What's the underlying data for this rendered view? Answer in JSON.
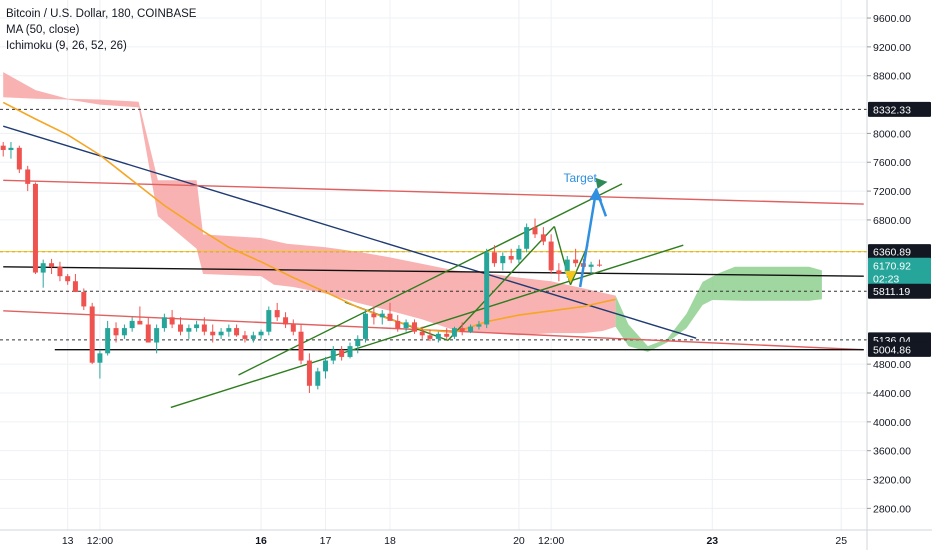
{
  "legend": {
    "title": "Bitcoin / U.S. Dollar, 180, COINBASE",
    "ma": "MA (50, close)",
    "ichimoku": "Ichimoku (9, 26, 52, 26)"
  },
  "colors": {
    "up": "#26a69a",
    "down": "#ef5350",
    "cloud_red": "#f8a5a5",
    "cloud_green": "#8fcf8f",
    "ma": "#f5a623",
    "trend_blue": "#1f3b73",
    "trend_green": "#2e7d1f",
    "red_line": "#e06060",
    "yellow_line": "#f5c518",
    "target_arrow": "#2f8fe0"
  },
  "chart_data": {
    "type": "candlestick",
    "title": "Bitcoin / U.S. Dollar, 180, COINBASE",
    "ylim": [
      2500,
      9850
    ],
    "y_ticks": [
      9600,
      9200,
      8800,
      8000,
      7600,
      7200,
      6800,
      4800,
      4400,
      4000,
      3600,
      3200,
      2800
    ],
    "y_tick_labels": [
      "9600.00",
      "9200.00",
      "8800.00",
      "8000.00",
      "7600.00",
      "7200.00",
      "6800.00",
      "4800.00",
      "4400.00",
      "4000.00",
      "3600.00",
      "3200.00",
      "2800.00"
    ],
    "x_ticks": [
      {
        "label": "13",
        "bold": false,
        "t": 13.0
      },
      {
        "label": "12:00",
        "bold": false,
        "t": 13.5
      },
      {
        "label": "16",
        "bold": true,
        "t": 16.0
      },
      {
        "label": "17",
        "bold": false,
        "t": 17.0
      },
      {
        "label": "18",
        "bold": false,
        "t": 18.0
      },
      {
        "label": "20",
        "bold": false,
        "t": 20.0
      },
      {
        "label": "12:00",
        "bold": false,
        "t": 20.5
      },
      {
        "label": "23",
        "bold": true,
        "t": 23.0
      },
      {
        "label": "25",
        "bold": false,
        "t": 25.0
      }
    ],
    "price_tags": [
      {
        "label": "8332.33",
        "value": 8332.33,
        "bg": "#131722"
      },
      {
        "label": "6360.89",
        "value": 6360.89,
        "bg": "#131722"
      },
      {
        "label": "6170.92",
        "value": 6170.92,
        "bg": "#26a69a"
      },
      {
        "label": "02:23",
        "value": 5990,
        "bg": "#26a69a"
      },
      {
        "label": "5811.19",
        "value": 5811.19,
        "bg": "#131722"
      },
      {
        "label": "5136.04",
        "value": 5136.04,
        "bg": "#131722"
      },
      {
        "label": "5004.86",
        "value": 5004.86,
        "bg": "#131722"
      }
    ],
    "horizontal_levels": [
      {
        "value": 8332.33,
        "style": "dashed",
        "color": "#333333"
      },
      {
        "value": 6360.89,
        "style": "dashed",
        "color": "#333333"
      },
      {
        "value": 6360.89,
        "style": "solid",
        "color": "#f5c518"
      },
      {
        "value": 5811.19,
        "style": "dashed",
        "color": "#333333"
      },
      {
        "value": 5136.04,
        "style": "dashed",
        "color": "#333333"
      }
    ],
    "trend_lines": [
      {
        "from": [
          12.0,
          8100
        ],
        "to": [
          22.75,
          5160
        ],
        "color": "#1f3b73"
      },
      {
        "from": [
          12.0,
          7350
        ],
        "to": [
          25.35,
          7020
        ],
        "color": "#e06060"
      },
      {
        "from": [
          12.0,
          5540
        ],
        "to": [
          25.35,
          5000
        ],
        "color": "#e06060"
      },
      {
        "from": [
          12.0,
          6150
        ],
        "to": [
          25.35,
          6020
        ],
        "color": "#111111"
      },
      {
        "from": [
          12.8,
          5000
        ],
        "to": [
          25.35,
          5000
        ],
        "color": "#111111"
      },
      {
        "from": [
          15.65,
          4650
        ],
        "to": [
          21.6,
          7300
        ],
        "color": "#2e7d1f"
      },
      {
        "from": [
          14.6,
          4200
        ],
        "to": [
          22.55,
          6450
        ],
        "color": "#2e7d1f"
      },
      {
        "from": [
          17.3,
          5660
        ],
        "to": [
          18.9,
          5130
        ],
        "color": "#2e7d1f"
      },
      {
        "from": [
          18.9,
          5130
        ],
        "to": [
          20.55,
          6710
        ],
        "color": "#2e7d1f"
      },
      {
        "from": [
          20.55,
          6710
        ],
        "to": [
          20.8,
          5900
        ],
        "color": "#2e7d1f"
      },
      {
        "from": [
          20.8,
          5900
        ],
        "to": [
          21.07,
          6450
        ],
        "color": "#2e7d1f"
      }
    ],
    "target_arrow": {
      "from": [
        20.95,
        5870
      ],
      "to": [
        21.2,
        7220
      ],
      "tail": [
        21.35,
        6850
      ]
    },
    "target_label": "Target",
    "ma_line": [
      [
        12.0,
        8430
      ],
      [
        12.5,
        8200
      ],
      [
        13.0,
        7980
      ],
      [
        13.5,
        7700
      ],
      [
        14.0,
        7350
      ],
      [
        14.5,
        7000
      ],
      [
        15.0,
        6700
      ],
      [
        15.5,
        6420
      ],
      [
        16.0,
        6220
      ],
      [
        16.5,
        6000
      ],
      [
        17.0,
        5800
      ],
      [
        17.5,
        5590
      ],
      [
        18.0,
        5420
      ],
      [
        18.5,
        5280
      ],
      [
        19.0,
        5240
      ],
      [
        19.5,
        5390
      ],
      [
        20.0,
        5480
      ],
      [
        20.5,
        5540
      ],
      [
        21.0,
        5600
      ],
      [
        21.5,
        5700
      ]
    ],
    "cloud_red": {
      "top": [
        [
          12.0,
          8850
        ],
        [
          12.5,
          8600
        ],
        [
          13.0,
          8480
        ],
        [
          13.5,
          8470
        ],
        [
          14.1,
          8440
        ],
        [
          14.4,
          7350
        ],
        [
          15.0,
          7350
        ],
        [
          15.1,
          6600
        ],
        [
          16.0,
          6550
        ],
        [
          16.4,
          6470
        ],
        [
          17.0,
          6420
        ],
        [
          17.5,
          6360
        ],
        [
          18.0,
          6280
        ],
        [
          18.5,
          6190
        ],
        [
          19.0,
          6100
        ],
        [
          19.5,
          6060
        ],
        [
          20.0,
          6000
        ],
        [
          20.5,
          5950
        ],
        [
          21.0,
          5850
        ],
        [
          21.5,
          5750
        ]
      ],
      "bottom": [
        [
          21.5,
          5320
        ],
        [
          21.3,
          5260
        ],
        [
          21.0,
          5230
        ],
        [
          20.5,
          5230
        ],
        [
          20.0,
          5200
        ],
        [
          19.5,
          5230
        ],
        [
          19.1,
          5260
        ],
        [
          19.0,
          5270
        ],
        [
          18.5,
          5420
        ],
        [
          18.0,
          5540
        ],
        [
          17.5,
          5650
        ],
        [
          17.0,
          5780
        ],
        [
          16.5,
          5870
        ],
        [
          16.2,
          5900
        ],
        [
          16.0,
          6020
        ],
        [
          15.1,
          6050
        ],
        [
          15.0,
          6400
        ],
        [
          14.4,
          6850
        ],
        [
          14.1,
          8360
        ],
        [
          13.5,
          8400
        ],
        [
          13.0,
          8470
        ],
        [
          12.5,
          8480
        ],
        [
          12.0,
          8500
        ]
      ]
    },
    "cloud_green": {
      "top": [
        [
          21.5,
          5750
        ],
        [
          21.7,
          5350
        ],
        [
          22.0,
          5050
        ],
        [
          22.3,
          5150
        ],
        [
          22.6,
          5500
        ],
        [
          22.85,
          5940
        ],
        [
          23.1,
          6060
        ],
        [
          23.35,
          6150
        ],
        [
          24.0,
          6150
        ],
        [
          24.5,
          6150
        ],
        [
          24.7,
          6100
        ]
      ],
      "bottom": [
        [
          24.7,
          5700
        ],
        [
          24.5,
          5680
        ],
        [
          23.5,
          5680
        ],
        [
          23.0,
          5690
        ],
        [
          22.85,
          5620
        ],
        [
          22.6,
          5300
        ],
        [
          22.3,
          5100
        ],
        [
          22.0,
          4970
        ],
        [
          21.7,
          5050
        ],
        [
          21.5,
          5320
        ]
      ]
    },
    "candles": [
      [
        12.0,
        7830,
        7880,
        7680,
        7770
      ],
      [
        12.12,
        7770,
        7880,
        7650,
        7800
      ],
      [
        12.25,
        7800,
        7830,
        7450,
        7500
      ],
      [
        12.38,
        7500,
        7550,
        7200,
        7300
      ],
      [
        12.5,
        7300,
        7320,
        6050,
        6070
      ],
      [
        12.62,
        6070,
        6250,
        5860,
        6200
      ],
      [
        12.75,
        6200,
        6260,
        6050,
        6150
      ],
      [
        12.88,
        6150,
        6220,
        5950,
        6020
      ],
      [
        13.0,
        6020,
        6050,
        5900,
        5950
      ],
      [
        13.12,
        5950,
        6050,
        5800,
        5800
      ],
      [
        13.25,
        5800,
        5850,
        5550,
        5600
      ],
      [
        13.38,
        5600,
        5650,
        4800,
        4820
      ],
      [
        13.5,
        4820,
        5000,
        4600,
        4950
      ],
      [
        13.62,
        4950,
        5400,
        4920,
        5300
      ],
      [
        13.75,
        5300,
        5380,
        5100,
        5200
      ],
      [
        13.88,
        5200,
        5350,
        5150,
        5300
      ],
      [
        14.0,
        5300,
        5450,
        5250,
        5400
      ],
      [
        14.12,
        5400,
        5600,
        5350,
        5350
      ],
      [
        14.25,
        5350,
        5450,
        5100,
        5100
      ],
      [
        14.38,
        5100,
        5350,
        4950,
        5300
      ],
      [
        14.5,
        5300,
        5500,
        5250,
        5450
      ],
      [
        14.62,
        5450,
        5550,
        5300,
        5350
      ],
      [
        14.75,
        5350,
        5450,
        5200,
        5250
      ],
      [
        14.88,
        5250,
        5350,
        5150,
        5300
      ],
      [
        15.0,
        5300,
        5400,
        5250,
        5350
      ],
      [
        15.12,
        5350,
        5450,
        5200,
        5250
      ],
      [
        15.25,
        5250,
        5350,
        5100,
        5200
      ],
      [
        15.38,
        5200,
        5300,
        5150,
        5250
      ],
      [
        15.5,
        5250,
        5350,
        5180,
        5300
      ],
      [
        15.62,
        5300,
        5350,
        5180,
        5200
      ],
      [
        15.75,
        5200,
        5260,
        5100,
        5150
      ],
      [
        15.88,
        5150,
        5250,
        5100,
        5200
      ],
      [
        16.0,
        5200,
        5280,
        5150,
        5250
      ],
      [
        16.12,
        5250,
        5600,
        5200,
        5550
      ],
      [
        16.25,
        5550,
        5650,
        5400,
        5450
      ],
      [
        16.38,
        5450,
        5520,
        5300,
        5350
      ],
      [
        16.5,
        5350,
        5420,
        5200,
        5250
      ],
      [
        16.62,
        5250,
        5350,
        4800,
        4850
      ],
      [
        16.75,
        4850,
        4950,
        4400,
        4500
      ],
      [
        16.88,
        4500,
        4750,
        4450,
        4700
      ],
      [
        17.0,
        4700,
        4900,
        4600,
        4850
      ],
      [
        17.12,
        4850,
        5050,
        4800,
        5000
      ],
      [
        17.25,
        5000,
        5050,
        4850,
        4900
      ],
      [
        17.38,
        4900,
        5100,
        4880,
        5050
      ],
      [
        17.5,
        5050,
        5200,
        4950,
        5150
      ],
      [
        17.62,
        5150,
        5550,
        5100,
        5500
      ],
      [
        17.75,
        5500,
        5600,
        5350,
        5450
      ],
      [
        17.88,
        5450,
        5550,
        5350,
        5500
      ],
      [
        18.0,
        5500,
        5650,
        5420,
        5400
      ],
      [
        18.12,
        5400,
        5480,
        5250,
        5300
      ],
      [
        18.25,
        5300,
        5420,
        5250,
        5380
      ],
      [
        18.38,
        5380,
        5420,
        5220,
        5250
      ],
      [
        18.5,
        5250,
        5320,
        5150,
        5200
      ],
      [
        18.62,
        5200,
        5280,
        5120,
        5150
      ],
      [
        18.75,
        5150,
        5250,
        5100,
        5220
      ],
      [
        18.88,
        5220,
        5300,
        5150,
        5180
      ],
      [
        19.0,
        5180,
        5320,
        5150,
        5300
      ],
      [
        19.12,
        5300,
        5380,
        5200,
        5250
      ],
      [
        19.25,
        5250,
        5350,
        5230,
        5320
      ],
      [
        19.38,
        5320,
        5400,
        5280,
        5350
      ],
      [
        19.5,
        5350,
        6400,
        5300,
        6350
      ],
      [
        19.62,
        6350,
        6450,
        6150,
        6200
      ],
      [
        19.75,
        6200,
        6350,
        6100,
        6300
      ],
      [
        19.88,
        6300,
        6400,
        6200,
        6250
      ],
      [
        20.0,
        6250,
        6450,
        6200,
        6400
      ],
      [
        20.12,
        6400,
        6750,
        6350,
        6700
      ],
      [
        20.25,
        6700,
        6820,
        6550,
        6600
      ],
      [
        20.38,
        6600,
        6700,
        6450,
        6500
      ],
      [
        20.5,
        6500,
        6600,
        6050,
        6100
      ],
      [
        20.62,
        6100,
        6200,
        5950,
        6050
      ],
      [
        20.75,
        6050,
        6300,
        6000,
        6250
      ],
      [
        20.88,
        6250,
        6400,
        6150,
        6200
      ],
      [
        21.0,
        6200,
        6260,
        6100,
        6150
      ],
      [
        21.12,
        6150,
        6220,
        6050,
        6180
      ],
      [
        21.25,
        6180,
        6250,
        6150,
        6170
      ]
    ],
    "t_domain": [
      11.95,
      25.4
    ],
    "plot_width_ratio": 0.93
  }
}
